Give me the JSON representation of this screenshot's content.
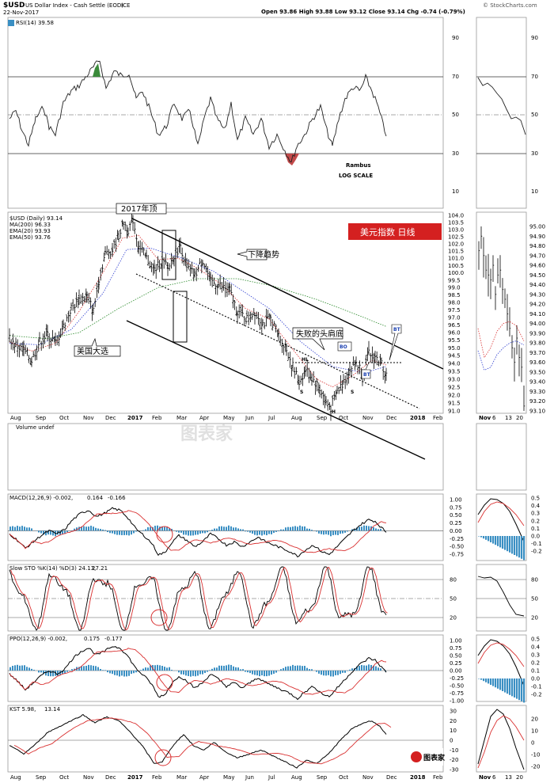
{
  "header": {
    "symbol": "$USD",
    "name": "US Dollar Index - Cash Settle (EOD)",
    "exchange": "ICE",
    "date": "22-Nov-2017",
    "quote": "Open 93.86  High 93.88  Low 93.12  Close 93.14  Chg -0.74 (-0.79%)",
    "watermark": "© StockCharts.com"
  },
  "rsi_panel": {
    "label": "RSI(14) 39.58",
    "ticks": [
      "90",
      "70",
      "50",
      "30",
      "10"
    ],
    "note1": "Rambus",
    "note2": "LOG SCALE"
  },
  "price_panel": {
    "legend_symbol": "$USD (Daily) 93.14",
    "ma200": "MA(200) 96.33",
    "ema20": "EMA(20) 93.93",
    "ema50": "EMA(50) 93.76",
    "title_box": "美元指数   日线",
    "ticks": [
      "104.0",
      "103.5",
      "103.0",
      "102.5",
      "102.0",
      "101.5",
      "101.0",
      "100.5",
      "100.0",
      "99.5",
      "99.0",
      "98.5",
      "98.0",
      "97.5",
      "97.0",
      "96.5",
      "96.0",
      "95.5",
      "95.0",
      "94.5",
      "94.0",
      "93.5",
      "93.0",
      "92.5",
      "92.0",
      "91.5",
      "91.0"
    ],
    "side_ticks": [
      "95.00",
      "94.90",
      "94.80",
      "94.70",
      "94.60",
      "94.50",
      "94.40",
      "94.30",
      "94.20",
      "94.10",
      "94.00",
      "93.90",
      "93.80",
      "93.70",
      "93.60",
      "93.50",
      "93.40",
      "93.30",
      "93.20",
      "93.10"
    ],
    "months": [
      "Aug",
      "Sep",
      "Oct",
      "Nov",
      "Dec",
      "2017",
      "Feb",
      "Mar",
      "Apr",
      "May",
      "Jun",
      "Jul",
      "Aug",
      "Sep",
      "Oct",
      "Nov",
      "Dec",
      "2018",
      "Feb"
    ],
    "side_months": [
      "Nov",
      "6",
      "13",
      "20"
    ],
    "annotations": {
      "top": "2017年顶",
      "downtrend": "下降趋势",
      "election": "美国大选",
      "failed_hs": "失败的头肩底",
      "bo": "BO",
      "bt1": "BT",
      "bt2": "BT",
      "hl": "HL",
      "s1": "S",
      "h": "H",
      "s2": "S"
    }
  },
  "volume_panel": {
    "label": "Volume undef"
  },
  "macd_panel": {
    "label": "MACD(12,26,9) -0.002, ",
    "v2": "0.164",
    "v3": "-0.166",
    "ticks": [
      "1.00",
      "0.75",
      "0.50",
      "0.25",
      "0.00",
      "-0.25",
      "-0.50",
      "-0.75"
    ],
    "side_ticks": [
      "0.5",
      "0.4",
      "0.3",
      "0.2",
      "0.1",
      "0.0",
      "-0.1",
      "-0.2"
    ]
  },
  "sto_panel": {
    "label": "Slow STO %K(14) %D(3) 24.13, ",
    "v2": "27.21",
    "ticks": [
      "80",
      "50",
      "20"
    ]
  },
  "ppo_panel": {
    "label": "PPO(12,26,9) -0.002, ",
    "v2": "0.175",
    "v3": "-0.177",
    "ticks": [
      "1.00",
      "0.75",
      "0.50",
      "0.25",
      "0.00",
      "-0.25",
      "-0.50",
      "-0.75",
      "-1.00"
    ],
    "side_ticks": [
      "0.5",
      "0.4",
      "0.3",
      "0.2",
      "0.1",
      "0.0",
      "-0.1",
      "-0.2"
    ]
  },
  "kst_panel": {
    "label": "KST 5.98, ",
    "v2": "13.14",
    "ticks": [
      "30",
      "20",
      "10",
      "0",
      "-10",
      "-20",
      "-30"
    ],
    "side_ticks": [
      "20",
      "10",
      "0",
      "-10",
      "-20"
    ],
    "logo": "图表家"
  },
  "chart_data": {
    "type": "line",
    "title": "美元指数   日线",
    "ylabel": "",
    "scale": "log",
    "ylim": [
      91.0,
      104.0
    ],
    "series": [
      {
        "name": "$USD",
        "x": [
          "2016-08",
          "2016-09",
          "2016-10",
          "2016-11",
          "2016-12",
          "2017-01",
          "2017-02",
          "2017-03",
          "2017-04",
          "2017-05",
          "2017-06",
          "2017-07",
          "2017-08",
          "2017-09",
          "2017-10",
          "2017-11"
        ],
        "values": [
          95.5,
          95.3,
          97.8,
          100.5,
          102.8,
          103.5,
          101.0,
          101.5,
          100.0,
          98.0,
          97.0,
          95.0,
          93.0,
          91.5,
          93.5,
          93.14
        ]
      }
    ]
  },
  "colors": {
    "ema20": "#d93030",
    "ema50": "#2f3fd0",
    "ma200": "#2b8a2b",
    "title_box": "#d42020",
    "hist": "#3a8fc3",
    "rsi_fill": "#3a8a3a",
    "rsi_fill_low": "#c24a4a"
  }
}
